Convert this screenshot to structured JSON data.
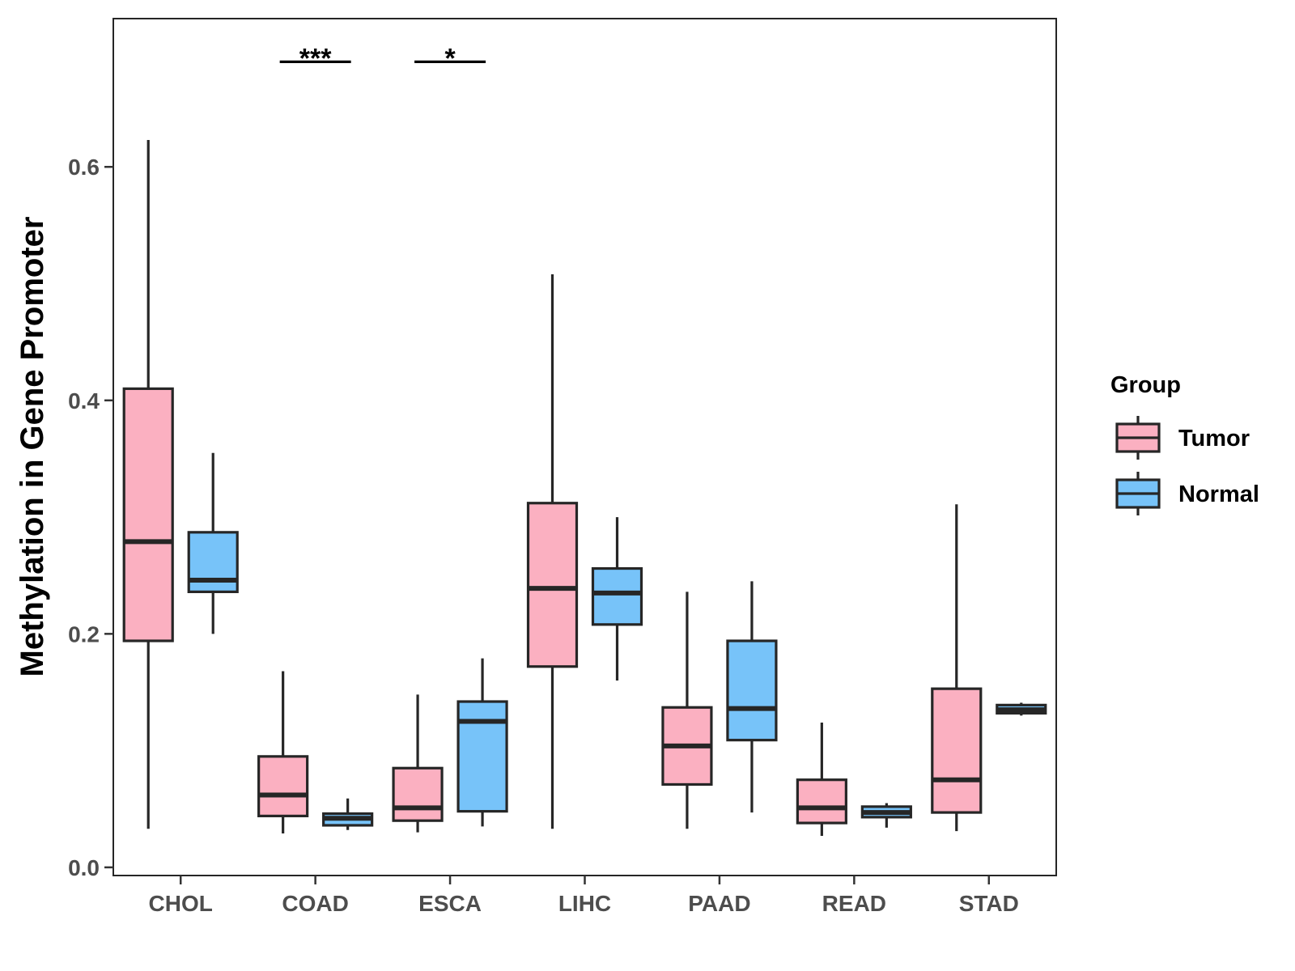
{
  "chart_data": {
    "type": "box",
    "title": "",
    "xlabel": "",
    "ylabel": "Methylation in Gene Promoter",
    "ylim": [
      -0.007,
      0.727
    ],
    "yticks": [
      0.0,
      0.2,
      0.4,
      0.6
    ],
    "ytick_labels": [
      "0.0",
      "0.2",
      "0.4",
      "0.6"
    ],
    "categories": [
      "CHOL",
      "COAD",
      "ESCA",
      "LIHC",
      "PAAD",
      "READ",
      "STAD"
    ],
    "legend": {
      "title": "Group",
      "position": "right",
      "entries": [
        {
          "name": "Tumor",
          "color": "#FBB0C1"
        },
        {
          "name": "Normal",
          "color": "#77C3F9"
        }
      ]
    },
    "series": [
      {
        "name": "Tumor",
        "color": "#FBB0C1",
        "boxes": [
          {
            "category": "CHOL",
            "min": 0.033,
            "q1": 0.194,
            "median": 0.279,
            "q3": 0.41,
            "max": 0.623
          },
          {
            "category": "COAD",
            "min": 0.029,
            "q1": 0.044,
            "median": 0.062,
            "q3": 0.095,
            "max": 0.168
          },
          {
            "category": "ESCA",
            "min": 0.03,
            "q1": 0.04,
            "median": 0.051,
            "q3": 0.085,
            "max": 0.148
          },
          {
            "category": "LIHC",
            "min": 0.033,
            "q1": 0.172,
            "median": 0.239,
            "q3": 0.312,
            "max": 0.508
          },
          {
            "category": "PAAD",
            "min": 0.033,
            "q1": 0.071,
            "median": 0.104,
            "q3": 0.137,
            "max": 0.236
          },
          {
            "category": "READ",
            "min": 0.027,
            "q1": 0.038,
            "median": 0.051,
            "q3": 0.075,
            "max": 0.124
          },
          {
            "category": "STAD",
            "min": 0.031,
            "q1": 0.047,
            "median": 0.075,
            "q3": 0.153,
            "max": 0.311
          }
        ]
      },
      {
        "name": "Normal",
        "color": "#77C3F9",
        "boxes": [
          {
            "category": "CHOL",
            "min": 0.2,
            "q1": 0.236,
            "median": 0.246,
            "q3": 0.287,
            "max": 0.355
          },
          {
            "category": "COAD",
            "min": 0.032,
            "q1": 0.036,
            "median": 0.042,
            "q3": 0.046,
            "max": 0.059
          },
          {
            "category": "ESCA",
            "min": 0.035,
            "q1": 0.048,
            "median": 0.125,
            "q3": 0.142,
            "max": 0.179
          },
          {
            "category": "LIHC",
            "min": 0.16,
            "q1": 0.208,
            "median": 0.235,
            "q3": 0.256,
            "max": 0.3
          },
          {
            "category": "PAAD",
            "min": 0.047,
            "q1": 0.109,
            "median": 0.136,
            "q3": 0.194,
            "max": 0.245
          },
          {
            "category": "READ",
            "min": 0.034,
            "q1": 0.043,
            "median": 0.047,
            "q3": 0.052,
            "max": 0.055
          },
          {
            "category": "STAD",
            "min": 0.13,
            "q1": 0.132,
            "median": 0.135,
            "q3": 0.139,
            "max": 0.141
          }
        ]
      }
    ],
    "significance": [
      {
        "category": "COAD",
        "label": "***",
        "y": 0.69
      },
      {
        "category": "ESCA",
        "label": "*",
        "y": 0.69
      }
    ]
  }
}
